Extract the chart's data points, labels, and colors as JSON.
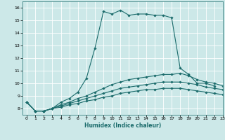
{
  "title": "",
  "xlabel": "Humidex (Indice chaleur)",
  "ylabel": "",
  "xlim": [
    -0.5,
    23
  ],
  "ylim": [
    7.5,
    16.5
  ],
  "xticks": [
    0,
    1,
    2,
    3,
    4,
    5,
    6,
    7,
    8,
    9,
    10,
    11,
    12,
    13,
    14,
    15,
    16,
    17,
    18,
    19,
    20,
    21,
    22,
    23
  ],
  "yticks": [
    8,
    9,
    10,
    11,
    12,
    13,
    14,
    15,
    16
  ],
  "background_color": "#cce8e8",
  "line_color": "#1a6b6b",
  "grid_color": "#ffffff",
  "lines": [
    {
      "x": [
        0,
        1,
        2,
        3,
        4,
        5,
        6,
        7,
        8,
        9,
        10,
        11,
        12,
        13,
        14,
        15,
        16,
        17,
        18,
        19,
        20,
        21,
        22
      ],
      "y": [
        8.5,
        7.8,
        7.8,
        8.0,
        8.5,
        8.8,
        9.3,
        10.4,
        12.8,
        15.7,
        15.5,
        15.8,
        15.4,
        15.5,
        15.5,
        15.4,
        15.4,
        15.2,
        11.2,
        10.7,
        10.0,
        10.0,
        9.8
      ]
    },
    {
      "x": [
        0,
        1,
        2,
        3,
        4,
        5,
        6,
        7,
        8,
        9,
        10,
        11,
        12,
        13,
        14,
        15,
        16,
        17,
        18,
        19,
        20,
        21,
        22,
        23
      ],
      "y": [
        8.5,
        7.8,
        7.8,
        8.0,
        8.3,
        8.5,
        8.8,
        9.0,
        9.3,
        9.6,
        9.9,
        10.1,
        10.3,
        10.4,
        10.5,
        10.6,
        10.7,
        10.7,
        10.8,
        10.6,
        10.3,
        10.1,
        10.0,
        9.8
      ]
    },
    {
      "x": [
        0,
        1,
        2,
        3,
        4,
        5,
        6,
        7,
        8,
        9,
        10,
        11,
        12,
        13,
        14,
        15,
        16,
        17,
        18,
        19,
        20,
        21,
        22,
        23
      ],
      "y": [
        8.5,
        7.8,
        7.8,
        8.0,
        8.2,
        8.4,
        8.6,
        8.8,
        9.0,
        9.2,
        9.4,
        9.6,
        9.7,
        9.8,
        9.9,
        10.0,
        10.1,
        10.1,
        10.1,
        10.0,
        9.9,
        9.7,
        9.6,
        9.5
      ]
    },
    {
      "x": [
        0,
        1,
        2,
        3,
        4,
        5,
        6,
        7,
        8,
        9,
        10,
        11,
        12,
        13,
        14,
        15,
        16,
        17,
        18,
        19,
        20,
        21,
        22,
        23
      ],
      "y": [
        8.5,
        7.8,
        7.8,
        8.0,
        8.1,
        8.3,
        8.4,
        8.6,
        8.7,
        8.9,
        9.0,
        9.2,
        9.3,
        9.4,
        9.5,
        9.5,
        9.6,
        9.6,
        9.6,
        9.5,
        9.4,
        9.3,
        9.2,
        9.1
      ]
    }
  ]
}
